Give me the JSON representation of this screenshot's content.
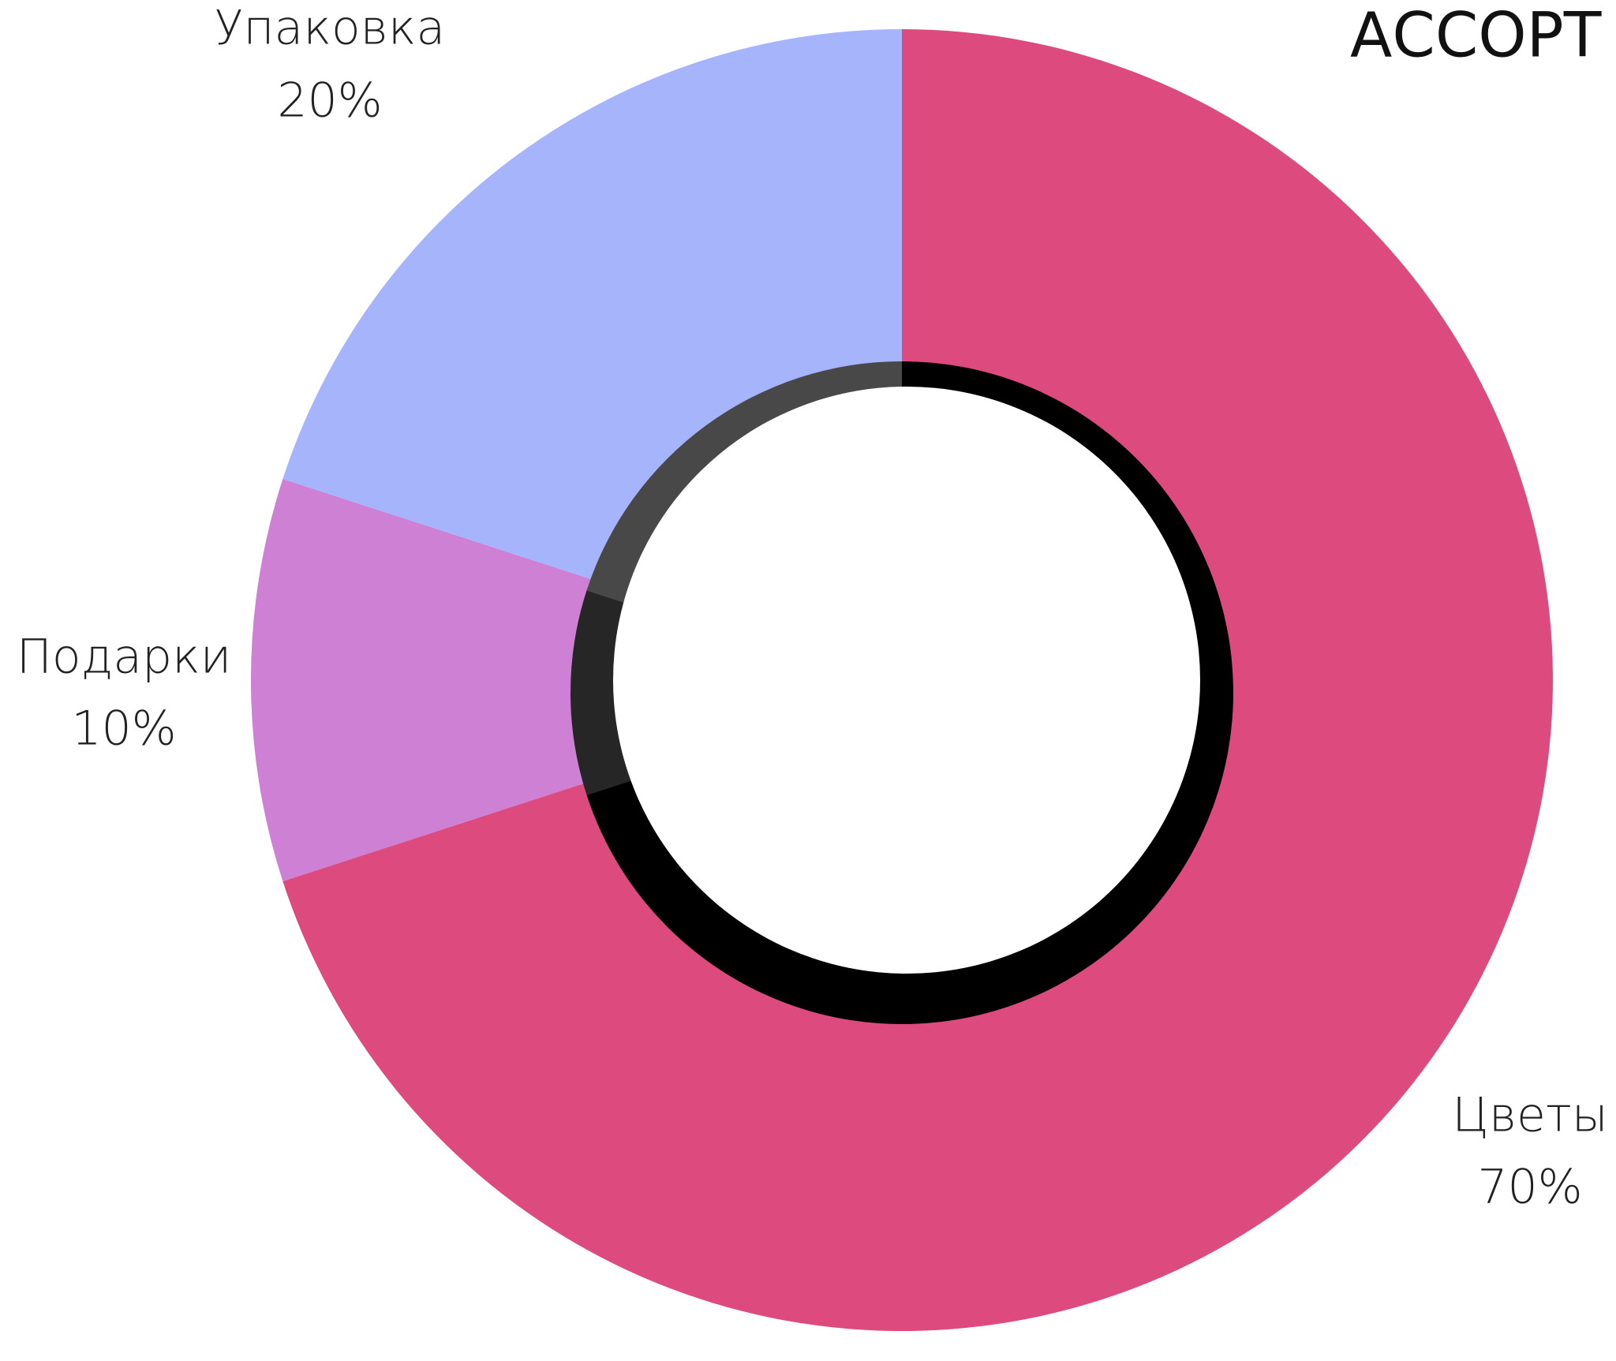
{
  "chart_data": {
    "type": "donut",
    "title": "АССОРТ",
    "categories": [
      "Цветы",
      "Подарки",
      "Упаковка"
    ],
    "values": [
      70,
      10,
      20
    ],
    "value_labels": [
      "70%",
      "10%",
      "20%"
    ],
    "colors": [
      "#dc4a7e",
      "#cd80d4",
      "#a6b4fc"
    ]
  }
}
